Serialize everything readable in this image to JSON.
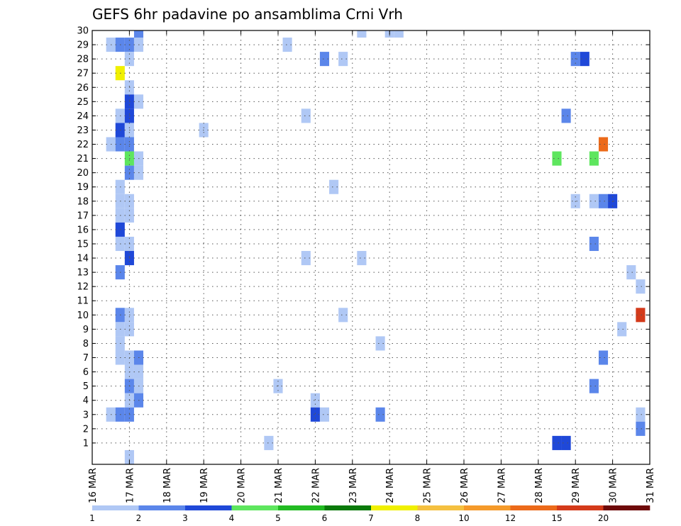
{
  "chart_data": {
    "type": "heatmap",
    "title": "GEFS 6hr padavine po ansamblima Crni Vrh",
    "xlabel": "",
    "ylabel": "",
    "x_tick_labels": [
      "16 MAR",
      "17 MAR",
      "18 MAR",
      "19 MAR",
      "20 MAR",
      "21 MAR",
      "22 MAR",
      "23 MAR",
      "24 MAR",
      "25 MAR",
      "26 MAR",
      "27 MAR",
      "28 MAR",
      "29 MAR",
      "30 MAR",
      "31 MAR"
    ],
    "y_tick_labels": [
      "1",
      "2",
      "3",
      "4",
      "5",
      "6",
      "7",
      "8",
      "9",
      "10",
      "11",
      "12",
      "13",
      "14",
      "15",
      "16",
      "17",
      "18",
      "19",
      "20",
      "21",
      "22",
      "23",
      "24",
      "25",
      "26",
      "27",
      "28",
      "29",
      "30"
    ],
    "x_range_days": [
      16,
      31
    ],
    "y_range": [
      0,
      30
    ],
    "grid": true,
    "legend_position": "bottom",
    "colorbar": {
      "labels": [
        "1",
        "2",
        "3",
        "4",
        "5",
        "6",
        "7",
        "8",
        "10",
        "12",
        "15",
        "20"
      ],
      "bins": [
        {
          "from": 1,
          "to": 2,
          "color": "#b0c8f5"
        },
        {
          "from": 2,
          "to": 3,
          "color": "#5b86ea"
        },
        {
          "from": 3,
          "to": 4,
          "color": "#1f48d8"
        },
        {
          "from": 4,
          "to": 5,
          "color": "#5ee65e"
        },
        {
          "from": 5,
          "to": 6,
          "color": "#22bb22"
        },
        {
          "from": 6,
          "to": 7,
          "color": "#0a7a0a"
        },
        {
          "from": 7,
          "to": 8,
          "color": "#f0f000"
        },
        {
          "from": 8,
          "to": 10,
          "color": "#f5c040"
        },
        {
          "from": 10,
          "to": 12,
          "color": "#f59a2a"
        },
        {
          "from": 12,
          "to": 15,
          "color": "#ec6a1a"
        },
        {
          "from": 15,
          "to": 20,
          "color": "#d43a1a"
        },
        {
          "from": 20,
          "to": 25,
          "color": "#6e0a0a"
        }
      ]
    },
    "cells": [
      {
        "member": 30,
        "day": 17.25,
        "bin": 1
      },
      {
        "member": 30,
        "day": 23.25,
        "bin": 0
      },
      {
        "member": 30,
        "day": 24.0,
        "bin": 0
      },
      {
        "member": 30,
        "day": 24.25,
        "bin": 0
      },
      {
        "member": 29,
        "day": 16.5,
        "bin": 0
      },
      {
        "member": 29,
        "day": 16.75,
        "bin": 1
      },
      {
        "member": 29,
        "day": 17.0,
        "bin": 1
      },
      {
        "member": 29,
        "day": 17.25,
        "bin": 0
      },
      {
        "member": 29,
        "day": 21.25,
        "bin": 0
      },
      {
        "member": 28,
        "day": 17.0,
        "bin": 0
      },
      {
        "member": 28,
        "day": 22.25,
        "bin": 1
      },
      {
        "member": 28,
        "day": 22.75,
        "bin": 0
      },
      {
        "member": 28,
        "day": 29.0,
        "bin": 1
      },
      {
        "member": 28,
        "day": 29.25,
        "bin": 2
      },
      {
        "member": 27,
        "day": 16.75,
        "bin": 6
      },
      {
        "member": 26,
        "day": 17.0,
        "bin": 0
      },
      {
        "member": 25,
        "day": 17.0,
        "bin": 2
      },
      {
        "member": 25,
        "day": 17.25,
        "bin": 0
      },
      {
        "member": 24,
        "day": 16.75,
        "bin": 0
      },
      {
        "member": 24,
        "day": 17.0,
        "bin": 2
      },
      {
        "member": 24,
        "day": 21.75,
        "bin": 0
      },
      {
        "member": 24,
        "day": 28.75,
        "bin": 1
      },
      {
        "member": 23,
        "day": 16.75,
        "bin": 2
      },
      {
        "member": 23,
        "day": 17.0,
        "bin": 0
      },
      {
        "member": 23,
        "day": 19.0,
        "bin": 0
      },
      {
        "member": 22,
        "day": 16.5,
        "bin": 0
      },
      {
        "member": 22,
        "day": 16.75,
        "bin": 1
      },
      {
        "member": 22,
        "day": 17.0,
        "bin": 1
      },
      {
        "member": 22,
        "day": 29.75,
        "bin": 9
      },
      {
        "member": 21,
        "day": 17.0,
        "bin": 3
      },
      {
        "member": 21,
        "day": 17.25,
        "bin": 0
      },
      {
        "member": 21,
        "day": 28.5,
        "bin": 3
      },
      {
        "member": 21,
        "day": 29.5,
        "bin": 3
      },
      {
        "member": 20,
        "day": 17.0,
        "bin": 1
      },
      {
        "member": 20,
        "day": 17.25,
        "bin": 0
      },
      {
        "member": 19,
        "day": 16.75,
        "bin": 0
      },
      {
        "member": 19,
        "day": 22.5,
        "bin": 0
      },
      {
        "member": 18,
        "day": 16.75,
        "bin": 0
      },
      {
        "member": 18,
        "day": 17.0,
        "bin": 0
      },
      {
        "member": 18,
        "day": 29.0,
        "bin": 0
      },
      {
        "member": 18,
        "day": 29.5,
        "bin": 0
      },
      {
        "member": 18,
        "day": 29.75,
        "bin": 1
      },
      {
        "member": 18,
        "day": 30.0,
        "bin": 2
      },
      {
        "member": 17,
        "day": 16.75,
        "bin": 0
      },
      {
        "member": 17,
        "day": 17.0,
        "bin": 0
      },
      {
        "member": 16,
        "day": 16.75,
        "bin": 2
      },
      {
        "member": 15,
        "day": 16.75,
        "bin": 0
      },
      {
        "member": 15,
        "day": 17.0,
        "bin": 0
      },
      {
        "member": 15,
        "day": 29.5,
        "bin": 1
      },
      {
        "member": 14,
        "day": 17.0,
        "bin": 2
      },
      {
        "member": 14,
        "day": 21.75,
        "bin": 0
      },
      {
        "member": 14,
        "day": 23.25,
        "bin": 0
      },
      {
        "member": 13,
        "day": 16.75,
        "bin": 1
      },
      {
        "member": 13,
        "day": 30.5,
        "bin": 0
      },
      {
        "member": 12,
        "day": 30.75,
        "bin": 0
      },
      {
        "member": 10,
        "day": 16.75,
        "bin": 1
      },
      {
        "member": 10,
        "day": 17.0,
        "bin": 0
      },
      {
        "member": 10,
        "day": 22.75,
        "bin": 0
      },
      {
        "member": 10,
        "day": 30.75,
        "bin": 10
      },
      {
        "member": 9,
        "day": 16.75,
        "bin": 0
      },
      {
        "member": 9,
        "day": 17.0,
        "bin": 0
      },
      {
        "member": 9,
        "day": 30.25,
        "bin": 0
      },
      {
        "member": 8,
        "day": 16.75,
        "bin": 0
      },
      {
        "member": 8,
        "day": 23.75,
        "bin": 0
      },
      {
        "member": 7,
        "day": 16.75,
        "bin": 0
      },
      {
        "member": 7,
        "day": 17.0,
        "bin": 0
      },
      {
        "member": 7,
        "day": 17.25,
        "bin": 1
      },
      {
        "member": 7,
        "day": 29.75,
        "bin": 1
      },
      {
        "member": 6,
        "day": 17.0,
        "bin": 0
      },
      {
        "member": 6,
        "day": 17.25,
        "bin": 0
      },
      {
        "member": 5,
        "day": 17.0,
        "bin": 1
      },
      {
        "member": 5,
        "day": 17.25,
        "bin": 0
      },
      {
        "member": 5,
        "day": 21.0,
        "bin": 0
      },
      {
        "member": 5,
        "day": 29.5,
        "bin": 1
      },
      {
        "member": 4,
        "day": 17.0,
        "bin": 0
      },
      {
        "member": 4,
        "day": 17.25,
        "bin": 1
      },
      {
        "member": 4,
        "day": 22.0,
        "bin": 0
      },
      {
        "member": 3,
        "day": 16.5,
        "bin": 0
      },
      {
        "member": 3,
        "day": 16.75,
        "bin": 1
      },
      {
        "member": 3,
        "day": 17.0,
        "bin": 1
      },
      {
        "member": 3,
        "day": 22.0,
        "bin": 2
      },
      {
        "member": 3,
        "day": 22.25,
        "bin": 0
      },
      {
        "member": 3,
        "day": 23.75,
        "bin": 1
      },
      {
        "member": 3,
        "day": 30.75,
        "bin": 0
      },
      {
        "member": 2,
        "day": 30.75,
        "bin": 1
      },
      {
        "member": 1,
        "day": 20.75,
        "bin": 0
      },
      {
        "member": 1,
        "day": 28.5,
        "bin": 2
      },
      {
        "member": 1,
        "day": 28.75,
        "bin": 2
      },
      {
        "member": 0,
        "day": 17.0,
        "bin": 0
      }
    ]
  }
}
